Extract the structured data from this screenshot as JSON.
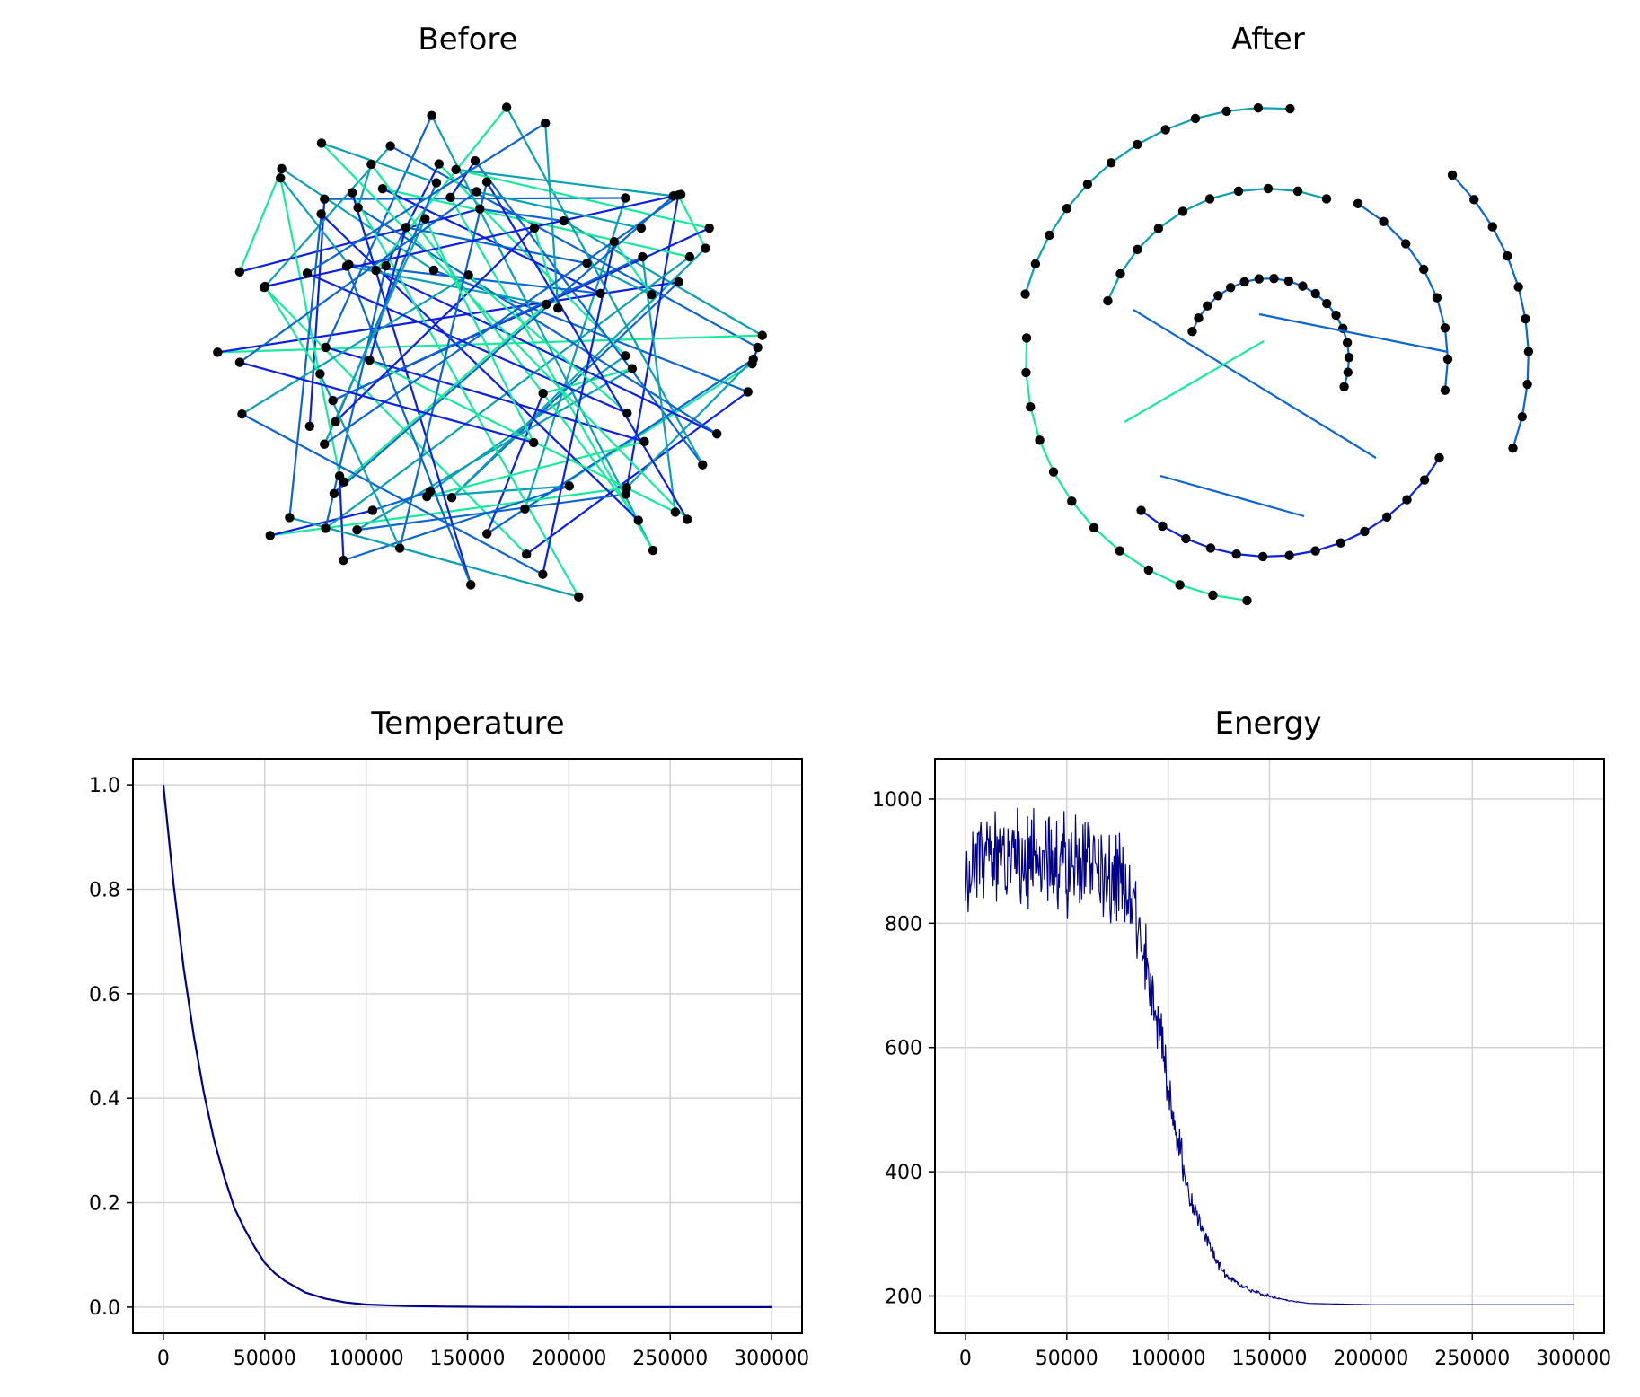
{
  "chart_data": [
    {
      "type": "graph",
      "title": "Before",
      "note": "network of nodes with randomly crossing edges before optimization",
      "colors": [
        "#0a1fe6",
        "#0a64d2",
        "#0aa0b4",
        "#14eb9b"
      ]
    },
    {
      "type": "graph",
      "title": "After",
      "note": "same network after optimization: nodes arranged on nested arcs",
      "colors": [
        "#0a1fe6",
        "#0a64d2",
        "#0aa0b4",
        "#14eb9b"
      ]
    },
    {
      "type": "line",
      "title": "Temperature",
      "xlim": [
        -15000,
        315000
      ],
      "ylim": [
        -0.05,
        1.05
      ],
      "xticks": [
        "0",
        "50000",
        "100000",
        "150000",
        "200000",
        "250000",
        "300000"
      ],
      "yticks": [
        "0.0",
        "0.2",
        "0.4",
        "0.6",
        "0.8",
        "1.0"
      ],
      "series": [
        {
          "color": "#00008b",
          "x": [
            0,
            5000,
            10000,
            15000,
            20000,
            25000,
            30000,
            35000,
            40000,
            45000,
            50000,
            55000,
            60000,
            70000,
            80000,
            90000,
            100000,
            120000,
            140000,
            160000,
            200000,
            250000,
            300000
          ],
          "y": [
            1.0,
            0.81,
            0.65,
            0.52,
            0.41,
            0.32,
            0.25,
            0.19,
            0.15,
            0.115,
            0.085,
            0.065,
            0.05,
            0.028,
            0.016,
            0.009,
            0.005,
            0.002,
            0.001,
            0.0005,
            0.0001,
            0.0,
            0.0
          ]
        }
      ]
    },
    {
      "type": "line",
      "title": "Energy",
      "xlim": [
        -15000,
        315000
      ],
      "ylim": [
        140,
        1065
      ],
      "xticks": [
        "0",
        "50000",
        "100000",
        "150000",
        "200000",
        "250000",
        "300000"
      ],
      "yticks": [
        "200",
        "400",
        "600",
        "800",
        "1000"
      ],
      "series": [
        {
          "color": "#00008b",
          "x": [
            0,
            10000,
            20000,
            30000,
            40000,
            50000,
            60000,
            70000,
            75000,
            80000,
            85000,
            90000,
            95000,
            100000,
            105000,
            110000,
            115000,
            120000,
            125000,
            130000,
            140000,
            150000,
            160000,
            170000,
            200000,
            250000,
            300000
          ],
          "y": [
            900,
            900,
            900,
            900,
            900,
            900,
            900,
            895,
            880,
            860,
            800,
            730,
            650,
            540,
            440,
            370,
            320,
            285,
            250,
            230,
            210,
            200,
            192,
            188,
            186,
            186,
            186
          ],
          "noise": [
            100,
            100,
            100,
            100,
            100,
            100,
            100,
            100,
            95,
            90,
            85,
            80,
            75,
            60,
            45,
            30,
            20,
            15,
            10,
            8,
            5,
            3,
            1,
            0,
            0,
            0,
            0
          ]
        }
      ]
    }
  ]
}
